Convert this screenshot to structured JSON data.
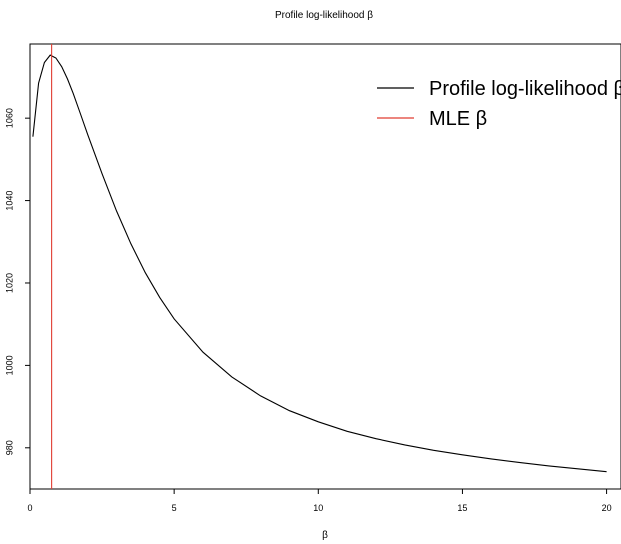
{
  "chart_data": {
    "type": "line",
    "title": "Profile log-likelihood β",
    "xlabel": "β",
    "ylabel": "",
    "xlim": [
      0,
      20.5
    ],
    "ylim": [
      970,
      1078
    ],
    "x_ticks": [
      0,
      5,
      10,
      15,
      20
    ],
    "y_ticks": [
      980,
      1000,
      1020,
      1040,
      1060
    ],
    "grid": false,
    "legend_position": "top-right",
    "series": [
      {
        "name": "Profile log-likelihood β",
        "color": "#000000",
        "x": [
          0.1,
          0.3,
          0.5,
          0.7,
          0.9,
          1.1,
          1.3,
          1.5,
          1.75,
          2.0,
          2.5,
          3.0,
          3.5,
          4.0,
          4.5,
          5.0,
          6.0,
          7.0,
          8.0,
          9.0,
          10.0,
          11.0,
          12.0,
          13.0,
          14.0,
          15.0,
          16.0,
          17.0,
          18.0,
          19.0,
          20.0
        ],
        "y": [
          1055.5,
          1068.5,
          1073.5,
          1075.3,
          1074.6,
          1072.5,
          1069.5,
          1066.0,
          1061.0,
          1056.0,
          1046.5,
          1037.5,
          1029.5,
          1022.5,
          1016.5,
          1011.3,
          1003.2,
          997.2,
          992.6,
          989.0,
          986.3,
          984.0,
          982.2,
          980.7,
          979.4,
          978.3,
          977.3,
          976.4,
          975.6,
          974.9,
          974.2
        ]
      },
      {
        "name": "MLE β",
        "color": "#e03c31",
        "vline_x": 0.75
      }
    ]
  }
}
